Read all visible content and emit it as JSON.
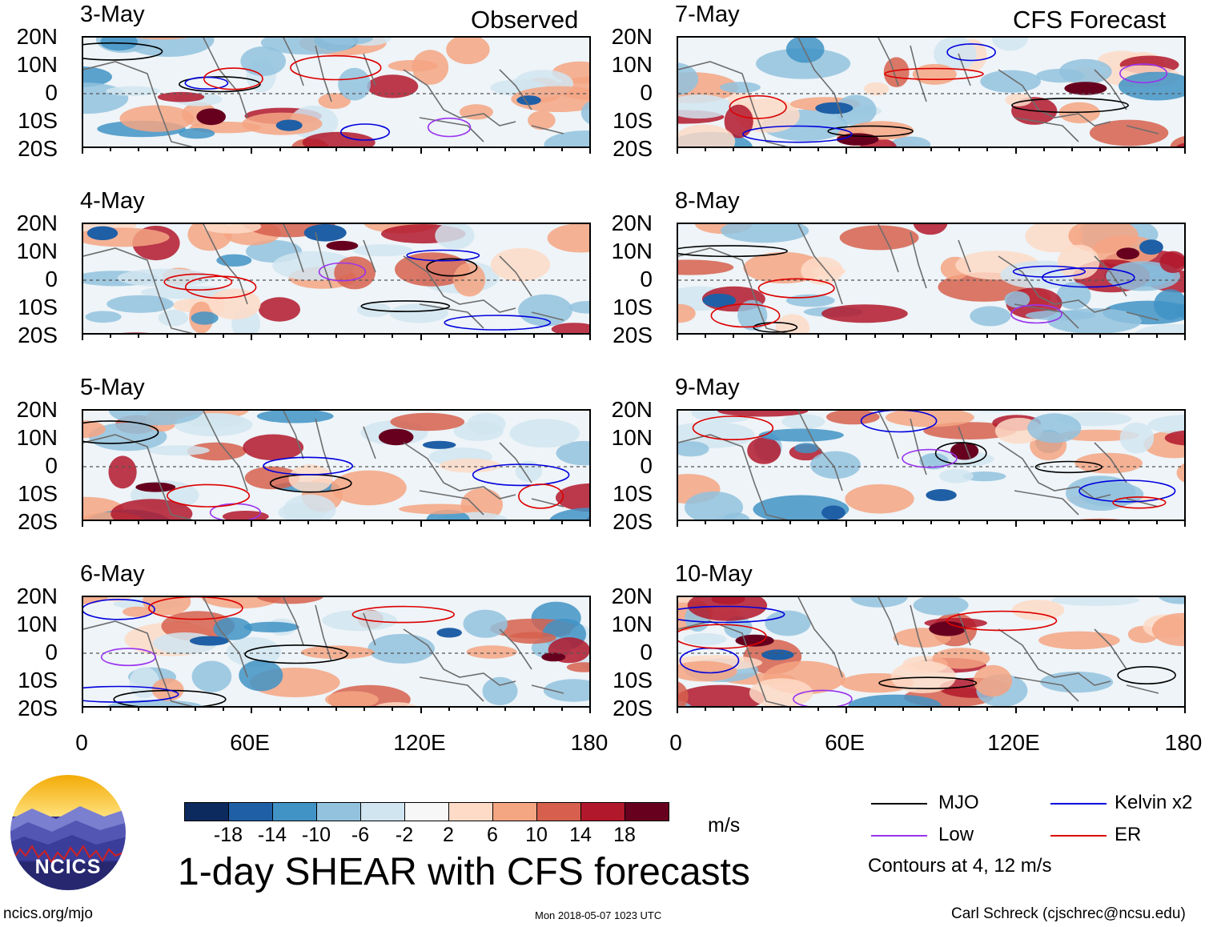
{
  "left_title": "Observed",
  "right_title": "CFS Forecast",
  "left_dates": [
    "3-May",
    "4-May",
    "5-May",
    "6-May"
  ],
  "right_dates": [
    "7-May",
    "8-May",
    "9-May",
    "10-May"
  ],
  "lat_labels": [
    "20N",
    "10N",
    "0",
    "10S",
    "20S"
  ],
  "lon_labels": [
    "0",
    "60E",
    "120E",
    "180"
  ],
  "main_title": "1-day SHEAR with CFS forecasts",
  "colorbar": {
    "unit": "m/s",
    "ticks": [
      "-18",
      "-14",
      "-10",
      "-6",
      "-2",
      "2",
      "6",
      "10",
      "14",
      "18"
    ],
    "colors": [
      "#0d2a5e",
      "#1f5fa6",
      "#4193c6",
      "#92c2de",
      "#d1e5f0",
      "#f7f7f7",
      "#fddbc7",
      "#f4a582",
      "#d6604d",
      "#b2182b",
      "#67001f"
    ]
  },
  "legend": {
    "items": [
      {
        "label": "MJO",
        "color": "#000000"
      },
      {
        "label": "Kelvin x2",
        "color": "#0000dd"
      },
      {
        "label": "Low",
        "color": "#9933ee"
      },
      {
        "label": "ER",
        "color": "#dd0000"
      }
    ],
    "note": "Contours at 4, 12 m/s"
  },
  "logo_text": "NCICS",
  "footer": {
    "left": "ncics.org/mjo",
    "center": "Mon 2018-05-07 1023 UTC",
    "right": "Carl Schreck (cjschrec@ncsu.edu)"
  },
  "chart_data": {
    "type": "heatmap",
    "title": "1-day SHEAR with CFS forecasts",
    "variable": "vertical wind shear anomaly",
    "units": "m/s",
    "x_range": [
      0,
      180
    ],
    "y_range": [
      -20,
      20
    ],
    "contour_levels_ms": [
      4,
      12
    ],
    "panels_observed": [
      "3-May",
      "4-May",
      "5-May",
      "6-May"
    ],
    "panels_forecast": [
      "7-May",
      "8-May",
      "9-May",
      "10-May"
    ]
  }
}
